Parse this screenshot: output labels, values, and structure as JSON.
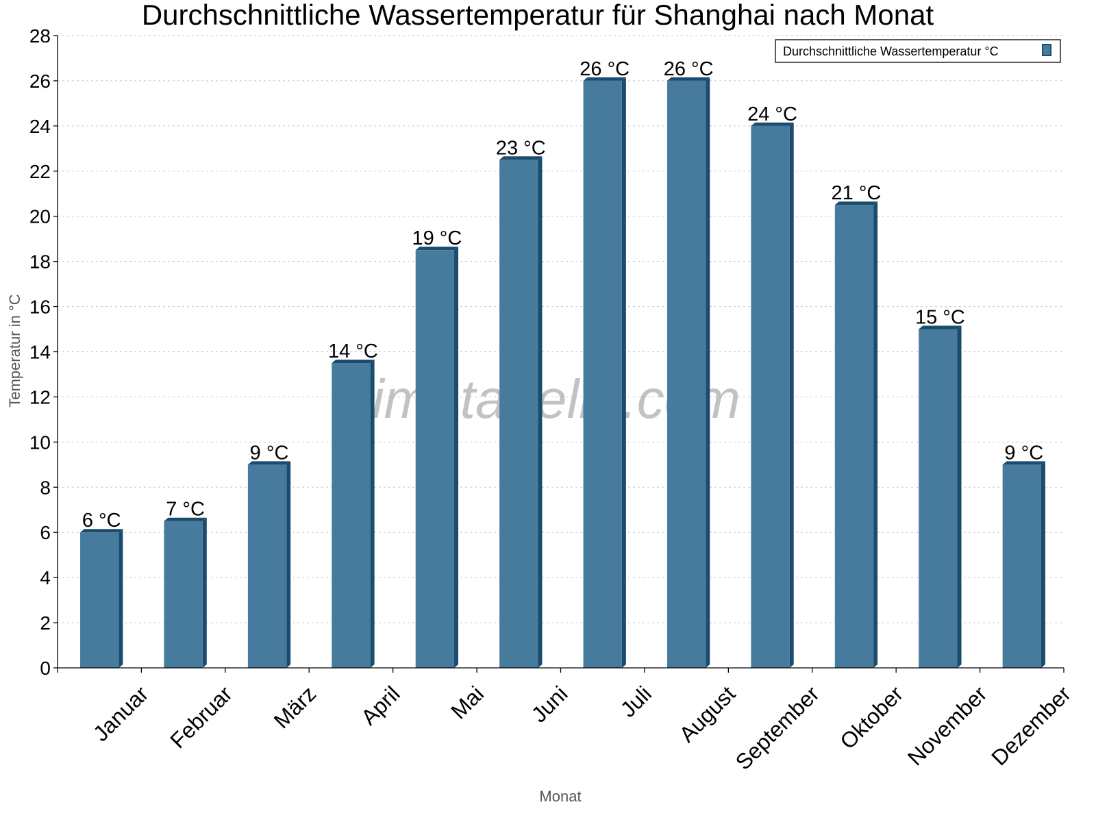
{
  "chart_data": {
    "type": "bar",
    "title": "Durchschnittliche Wassertemperatur für Shanghai nach Monat",
    "xlabel": "Monat",
    "ylabel": "Temperatur in °C",
    "categories": [
      "Januar",
      "Februar",
      "März",
      "April",
      "Mai",
      "Juni",
      "Juli",
      "August",
      "September",
      "Oktober",
      "November",
      "Dezember"
    ],
    "series": [
      {
        "name": "Durchschnittliche Wassertemperatur °C",
        "values": [
          6,
          6.5,
          9,
          13.5,
          18.5,
          22.5,
          26,
          26,
          24,
          20.5,
          15,
          9
        ],
        "labels": [
          "6 °C",
          "7 °C",
          "9 °C",
          "14 °C",
          "19 °C",
          "23 °C",
          "26 °C",
          "26 °C",
          "24 °C",
          "21 °C",
          "15 °C",
          "9 °C"
        ]
      }
    ],
    "ylim": [
      0,
      28
    ],
    "yticks": [
      0,
      2,
      4,
      6,
      8,
      10,
      12,
      14,
      16,
      18,
      20,
      22,
      24,
      26,
      28
    ],
    "grid": true,
    "legend_position": "top-right",
    "colors": {
      "bar": "#467b9d",
      "bar_side": "#1b4b6d",
      "grid": "#c8c8c8",
      "watermark": "#999999"
    },
    "watermark": "klimatabelle.com"
  }
}
